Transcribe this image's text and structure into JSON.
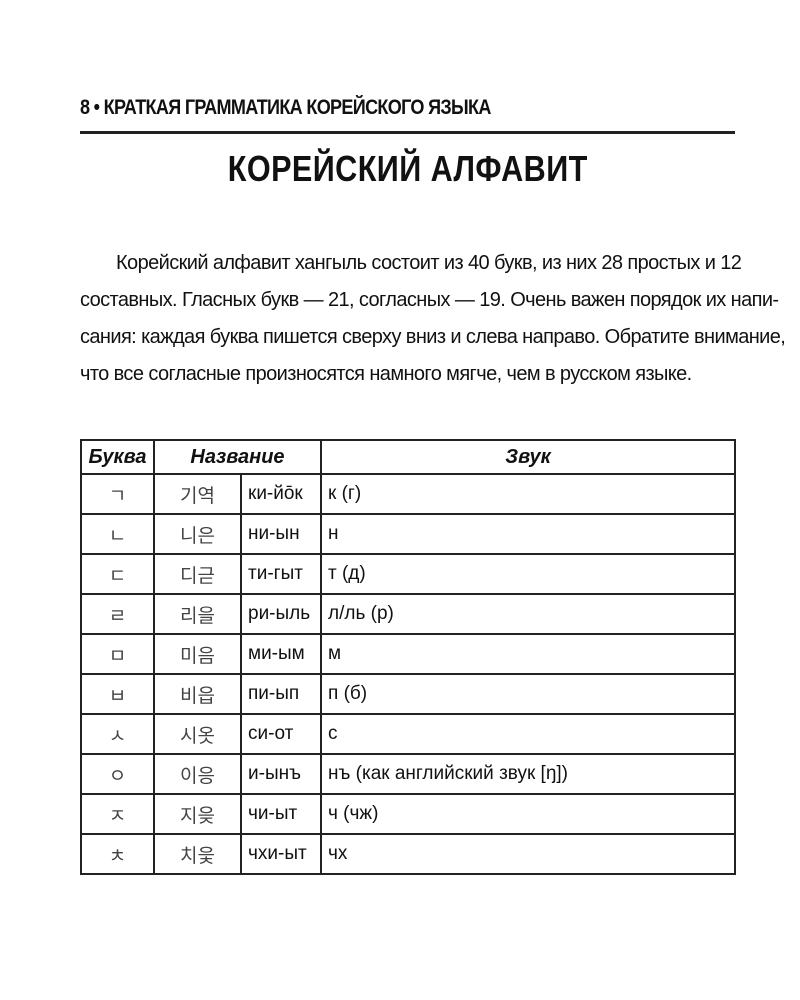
{
  "header": {
    "running_head": "8 • КРАТКАЯ ГРАММАТИКА КОРЕЙСКОГО ЯЗЫКА",
    "title": "КОРЕЙСКИЙ АЛФАВИТ"
  },
  "paragraph_lines": [
    "Корейский алфавит хангыль состоит из 40 букв, из них 28 простых и 12",
    "составных. Гласных букв — 21, согласных — 19. Очень важен порядок их напи-",
    "сания: каждая буква пишется сверху вниз и слева направо. Обратите внимание,",
    "что все согласные произносятся намного мягче, чем в русском языке."
  ],
  "table": {
    "headers": [
      "Буква",
      "Название",
      "Звук"
    ],
    "rows": [
      {
        "letter": "ㄱ",
        "name_korean": "기역",
        "name_russian": "ки-йōк",
        "sound": "к (г)"
      },
      {
        "letter": "ㄴ",
        "name_korean": "니은",
        "name_russian": "ни-ын",
        "sound": "н"
      },
      {
        "letter": "ㄷ",
        "name_korean": "디귿",
        "name_russian": "ти-гыт",
        "sound": "т (д)"
      },
      {
        "letter": "ㄹ",
        "name_korean": "리을",
        "name_russian": "ри-ыль",
        "sound": "л/ль (р)"
      },
      {
        "letter": "ㅁ",
        "name_korean": "미음",
        "name_russian": "ми-ым",
        "sound": "м"
      },
      {
        "letter": "ㅂ",
        "name_korean": "비읍",
        "name_russian": "пи-ып",
        "sound": "п (б)"
      },
      {
        "letter": "ㅅ",
        "name_korean": "시옷",
        "name_russian": "си-от",
        "sound": "с"
      },
      {
        "letter": "ㅇ",
        "name_korean": "이응",
        "name_russian": "и-ынъ",
        "sound": "нъ (как английский звук [ŋ])"
      },
      {
        "letter": "ㅈ",
        "name_korean": "지읒",
        "name_russian": "чи-ыт",
        "sound": "ч (чж)"
      },
      {
        "letter": "ㅊ",
        "name_korean": "치읓",
        "name_russian": "чхи-ыт",
        "sound": "чх"
      }
    ]
  }
}
